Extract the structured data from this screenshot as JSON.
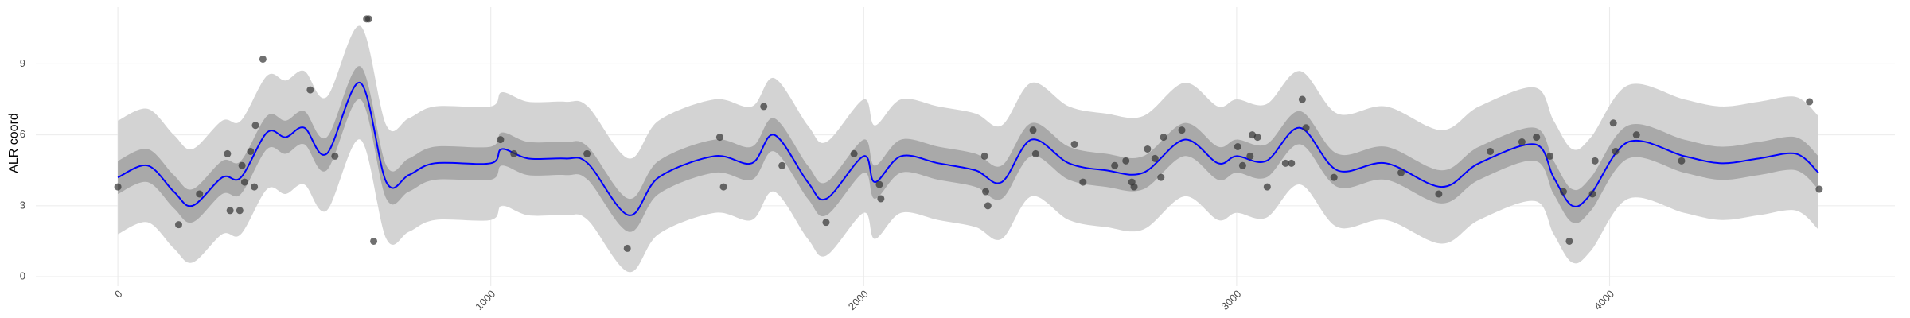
{
  "chart_data": {
    "type": "line",
    "ylabel": "ALR coord",
    "xlim": [
      -220,
      4765
    ],
    "ylim": [
      -0.4,
      11.4
    ],
    "xticks": [
      0,
      1000,
      2000,
      3000,
      4000
    ],
    "yticks": [
      0,
      3,
      6,
      9
    ],
    "grid": true,
    "x": [
      0,
      80,
      150,
      200,
      280,
      330,
      400,
      450,
      500,
      560,
      650,
      720,
      780,
      850,
      1000,
      1030,
      1100,
      1200,
      1260,
      1370,
      1450,
      1600,
      1700,
      1760,
      1850,
      1900,
      2000,
      2030,
      2100,
      2200,
      2300,
      2370,
      2450,
      2550,
      2650,
      2750,
      2860,
      2950,
      3000,
      3080,
      3170,
      3270,
      3400,
      3550,
      3650,
      3800,
      3850,
      3900,
      3950,
      4050,
      4200,
      4300,
      4400,
      4500,
      4560
    ],
    "bands": [
      {
        "color": "#d3d3d3",
        "lower": [
          1.8,
          2.3,
          1.2,
          0.6,
          1.8,
          1.8,
          3.7,
          3.5,
          3.9,
          2.8,
          5.8,
          1.6,
          1.9,
          2.4,
          2.4,
          3.0,
          2.6,
          2.6,
          2.4,
          0.2,
          1.8,
          2.7,
          2.4,
          3.6,
          1.6,
          0.9,
          2.7,
          1.6,
          2.7,
          2.4,
          2.1,
          1.6,
          3.4,
          2.4,
          2.1,
          2.0,
          3.4,
          2.4,
          2.7,
          2.5,
          3.9,
          2.1,
          2.4,
          1.4,
          2.4,
          3.2,
          1.8,
          0.6,
          1.1,
          3.3,
          2.7,
          2.4,
          2.6,
          2.8,
          2.0
        ],
        "upper": [
          6.6,
          7.1,
          6.0,
          5.4,
          6.6,
          6.6,
          8.5,
          8.3,
          8.7,
          7.6,
          10.6,
          6.4,
          6.7,
          7.2,
          7.2,
          7.8,
          7.4,
          7.4,
          7.2,
          5.0,
          6.6,
          7.5,
          7.2,
          8.4,
          6.4,
          5.7,
          7.5,
          6.4,
          7.5,
          7.2,
          6.9,
          6.4,
          8.2,
          7.2,
          6.9,
          6.8,
          8.2,
          7.2,
          7.5,
          7.3,
          8.7,
          6.9,
          7.2,
          6.2,
          7.2,
          8.0,
          6.6,
          5.4,
          5.9,
          8.1,
          7.5,
          7.2,
          7.4,
          7.6,
          6.8
        ]
      },
      {
        "color": "#a9a9a9",
        "lower": [
          3.5,
          4.0,
          2.9,
          2.3,
          3.5,
          3.5,
          5.4,
          5.2,
          5.6,
          4.5,
          7.5,
          3.3,
          3.6,
          4.1,
          4.1,
          4.7,
          4.3,
          4.3,
          4.1,
          1.9,
          3.5,
          4.4,
          4.1,
          5.3,
          3.3,
          2.6,
          4.4,
          3.3,
          4.4,
          4.1,
          3.8,
          3.3,
          5.1,
          4.1,
          3.8,
          3.7,
          5.1,
          4.1,
          4.4,
          4.2,
          5.6,
          3.8,
          4.1,
          3.1,
          4.1,
          4.9,
          3.5,
          2.3,
          2.8,
          5.0,
          4.4,
          4.1,
          4.3,
          4.5,
          3.7
        ],
        "upper": [
          4.9,
          5.4,
          4.3,
          3.7,
          4.9,
          4.9,
          6.8,
          6.6,
          7.0,
          5.9,
          8.9,
          4.7,
          5.0,
          5.5,
          5.5,
          6.1,
          5.7,
          5.7,
          5.5,
          3.3,
          4.9,
          5.8,
          5.5,
          6.7,
          4.7,
          4.0,
          5.8,
          4.7,
          5.8,
          5.5,
          5.2,
          4.7,
          6.5,
          5.5,
          5.2,
          5.1,
          6.5,
          5.5,
          5.8,
          5.6,
          7.0,
          5.2,
          5.5,
          4.5,
          5.5,
          6.3,
          4.9,
          3.7,
          4.2,
          6.4,
          5.8,
          5.5,
          5.7,
          5.9,
          5.1
        ]
      }
    ],
    "mean": {
      "color": "#0000ff",
      "values": [
        4.2,
        4.7,
        3.6,
        3.0,
        4.2,
        4.2,
        6.1,
        5.9,
        6.3,
        5.2,
        8.2,
        4.0,
        4.3,
        4.8,
        4.8,
        5.4,
        5.0,
        5.0,
        4.8,
        2.6,
        4.2,
        5.1,
        4.8,
        6.0,
        4.0,
        3.3,
        5.1,
        4.0,
        5.1,
        4.8,
        4.5,
        4.0,
        5.8,
        4.8,
        4.5,
        4.4,
        5.8,
        4.8,
        5.1,
        4.9,
        6.3,
        4.5,
        4.8,
        3.8,
        4.8,
        5.6,
        4.2,
        3.0,
        3.5,
        5.7,
        5.1,
        4.8,
        5.0,
        5.2,
        4.4
      ]
    },
    "points": {
      "color": "#333333",
      "x": [
        0,
        163,
        219,
        294,
        301,
        327,
        333,
        340,
        356,
        366,
        369,
        389,
        516,
        582,
        667,
        673,
        686,
        1026,
        1062,
        1258,
        1366,
        1614,
        1624,
        1732,
        1781,
        1899,
        1974,
        2042,
        2046,
        2324,
        2327,
        2333,
        2454,
        2461,
        2565,
        2588,
        2673,
        2703,
        2719,
        2725,
        2761,
        2781,
        2797,
        2804,
        2853,
        3003,
        3016,
        3036,
        3042,
        3056,
        3082,
        3131,
        3147,
        3176,
        3186,
        3261,
        3441,
        3542,
        3680,
        3765,
        3804,
        3840,
        3876,
        3892,
        3954,
        3961,
        4010,
        4016,
        4072,
        4193,
        4536,
        4562
      ],
      "y": [
        3.8,
        2.2,
        3.5,
        5.2,
        2.8,
        2.8,
        4.7,
        4.0,
        5.3,
        3.8,
        6.4,
        9.2,
        7.9,
        5.1,
        10.9,
        10.9,
        1.5,
        5.8,
        5.2,
        5.2,
        1.2,
        5.9,
        3.8,
        7.2,
        4.7,
        2.3,
        5.2,
        3.9,
        3.3,
        5.1,
        3.6,
        3.0,
        6.2,
        5.2,
        5.6,
        4.0,
        4.7,
        4.9,
        4.0,
        3.8,
        5.4,
        5.0,
        4.2,
        5.9,
        6.2,
        5.5,
        4.7,
        5.1,
        6.0,
        5.9,
        3.8,
        4.8,
        4.8,
        7.5,
        6.3,
        4.2,
        4.4,
        3.5,
        5.3,
        5.7,
        5.9,
        5.1,
        3.6,
        1.5,
        3.5,
        4.9,
        6.5,
        5.3,
        6.0,
        4.9,
        7.4,
        3.7
      ]
    }
  }
}
